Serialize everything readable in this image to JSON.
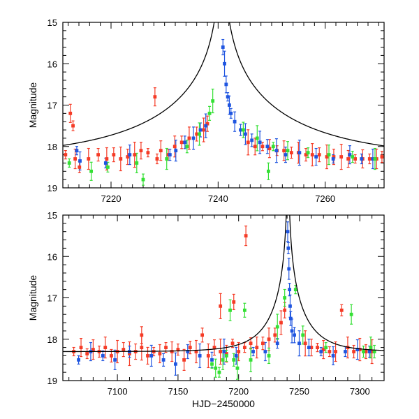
{
  "colors": {
    "red_series": "#f53b26",
    "blue_series": "#1f55e0",
    "green_series": "#35e035",
    "model": "#000000",
    "axes": "#000000"
  },
  "chart_data": [
    {
      "type": "scatter",
      "panel": "top",
      "title": "",
      "xlabel": "",
      "ylabel": "Magnitude",
      "xlim": [
        7211,
        7271
      ],
      "ylim": [
        19,
        15
      ],
      "y_inverted": true,
      "x_tick_labels": [
        "7220",
        "7240",
        "7260"
      ],
      "x_tick_values": [
        7220,
        7240,
        7260
      ],
      "y_tick_labels": [
        "15",
        "16",
        "17",
        "18",
        "19"
      ],
      "y_tick_values": [
        15,
        16,
        17,
        18,
        19
      ],
      "model_curve": {
        "name": "point-lens model",
        "t0": 7240.7,
        "tE": 30,
        "u0": 0.003,
        "baseline_mag": 18.3,
        "style": "black line"
      },
      "series": [
        {
          "name": "red observatory",
          "color": "#f53b26",
          "x": [
            7211.5,
            7212.4,
            7212.9,
            7213.3,
            7214.1,
            7215.8,
            7217.6,
            7219.2,
            7220.5,
            7221.8,
            7223.1,
            7224.4,
            7225.6,
            7226.9,
            7228.2,
            7228.6,
            7229.3,
            7230.7,
            7231.9,
            7233.2,
            7234.6,
            7236.0,
            7237.3,
            7238.0,
            7245.6,
            7246.9,
            7248.3,
            7249.6,
            7251.0,
            7252.3,
            7253.7,
            7255.0,
            7256.4,
            7257.6,
            7258.9,
            7260.3,
            7261.6,
            7263.0,
            7264.3,
            7265.6,
            7267.0,
            7268.3,
            7269.6,
            7270.6
          ],
          "y": [
            18.2,
            17.2,
            17.5,
            18.3,
            18.5,
            18.3,
            18.2,
            18.3,
            18.2,
            18.3,
            18.25,
            18.2,
            18.1,
            18.15,
            16.8,
            18.3,
            18.1,
            18.2,
            18.0,
            17.9,
            17.8,
            17.7,
            17.6,
            17.45,
            17.9,
            18.0,
            18.0,
            18.05,
            18.1,
            18.1,
            18.15,
            18.15,
            18.2,
            18.2,
            18.2,
            18.25,
            18.25,
            18.25,
            18.3,
            18.3,
            18.3,
            18.3,
            18.3,
            18.25
          ]
        },
        {
          "name": "blue observatory",
          "color": "#1f55e0",
          "x": [
            7213.6,
            7214.2,
            7219.0,
            7223.5,
            7231.0,
            7232.1,
            7233.8,
            7235.4,
            7236.7,
            7237.7,
            7240.9,
            7241.2,
            7241.5,
            7241.8,
            7242.1,
            7242.4,
            7243.1,
            7244.2,
            7245.1,
            7246.3,
            7247.8,
            7249.2,
            7250.9,
            7252.6,
            7255.2,
            7258.3,
            7261.5,
            7264.6,
            7266.8,
            7268.9
          ],
          "y": [
            18.1,
            18.35,
            18.4,
            18.2,
            18.2,
            18.1,
            17.9,
            17.8,
            17.6,
            17.5,
            15.6,
            16.0,
            16.5,
            16.8,
            17.0,
            17.2,
            17.4,
            17.6,
            17.7,
            17.85,
            17.9,
            18.0,
            18.1,
            18.2,
            18.15,
            18.25,
            18.3,
            18.2,
            18.3,
            18.3
          ]
        },
        {
          "name": "green observatory",
          "color": "#35e035",
          "x": [
            7212.2,
            7216.3,
            7219.4,
            7224.8,
            7226.0,
            7230.4,
            7234.2,
            7236.5,
            7238.4,
            7239.0,
            7244.7,
            7247.3,
            7249.4,
            7250.3,
            7253.0,
            7256.8,
            7260.7,
            7265.1,
            7269.3
          ],
          "y": [
            18.4,
            18.6,
            18.5,
            18.4,
            18.8,
            18.3,
            18.0,
            17.7,
            17.2,
            16.9,
            17.6,
            17.8,
            18.6,
            18.0,
            18.1,
            18.15,
            18.2,
            18.25,
            18.3
          ]
        }
      ]
    },
    {
      "type": "scatter",
      "panel": "bottom",
      "title": "",
      "xlabel": "HJD−2450000",
      "ylabel": "Magnitude",
      "xlim": [
        7055,
        7320
      ],
      "ylim": [
        19,
        15
      ],
      "y_inverted": true,
      "x_tick_labels": [
        "7100",
        "7150",
        "7200",
        "7250",
        "7300"
      ],
      "x_tick_values": [
        7100,
        7150,
        7200,
        7250,
        7300
      ],
      "y_tick_labels": [
        "15",
        "16",
        "17",
        "18",
        "19"
      ],
      "y_tick_values": [
        15,
        16,
        17,
        18,
        19
      ],
      "model_curve": {
        "name": "point-lens model",
        "t0": 7240.7,
        "tE": 30,
        "u0": 0.003,
        "baseline_mag": 18.3,
        "style": "black line"
      },
      "series": [
        {
          "name": "red observatory",
          "color": "#f53b26",
          "x": [
            7064,
            7070,
            7075,
            7080,
            7085,
            7090,
            7095,
            7100,
            7105,
            7110,
            7115,
            7120,
            7125,
            7130,
            7135,
            7140,
            7145,
            7150,
            7155,
            7160,
            7165,
            7170,
            7175,
            7180,
            7185,
            7190,
            7195,
            7200,
            7205,
            7206,
            7210,
            7215,
            7220,
            7225,
            7230,
            7235,
            7238,
            7255,
            7260,
            7265,
            7270,
            7275,
            7280,
            7285,
            7290,
            7295,
            7300,
            7305,
            7310,
            7196,
            7185,
            7120
          ],
          "y": [
            18.3,
            18.2,
            18.35,
            18.25,
            18.3,
            18.2,
            18.4,
            18.3,
            18.25,
            18.35,
            18.3,
            18.2,
            18.4,
            18.3,
            18.35,
            18.2,
            18.3,
            18.25,
            18.5,
            18.2,
            18.3,
            17.9,
            18.4,
            18.2,
            18.3,
            18.35,
            18.1,
            18.3,
            18.2,
            15.5,
            18.1,
            18.2,
            18.1,
            18.0,
            17.9,
            17.6,
            17.3,
            18.1,
            18.2,
            18.2,
            18.25,
            18.3,
            18.3,
            17.3,
            18.2,
            18.3,
            18.25,
            18.3,
            18.3,
            17.1,
            17.2,
            17.9
          ]
        },
        {
          "name": "blue observatory",
          "color": "#1f55e0",
          "x": [
            7068,
            7078,
            7088,
            7098,
            7110,
            7128,
            7138,
            7148,
            7158,
            7168,
            7178,
            7188,
            7198,
            7212,
            7222,
            7232,
            7240.5,
            7241.0,
            7241.5,
            7242.0,
            7242.5,
            7243.0,
            7244.0,
            7246.0,
            7250.0,
            7258,
            7268,
            7278,
            7288,
            7298,
            7308
          ],
          "y": [
            18.5,
            18.3,
            18.4,
            18.5,
            18.3,
            18.4,
            18.5,
            18.6,
            18.3,
            18.4,
            18.5,
            18.3,
            18.4,
            18.3,
            18.3,
            18.1,
            15.4,
            15.8,
            16.3,
            16.8,
            17.2,
            17.5,
            17.8,
            17.9,
            18.1,
            18.2,
            18.3,
            18.4,
            18.3,
            18.25,
            18.3
          ]
        },
        {
          "name": "green observatory",
          "color": "#35e035",
          "x": [
            7178,
            7181,
            7184,
            7187,
            7190,
            7193,
            7196,
            7199,
            7205,
            7210,
            7225,
            7232,
            7238,
            7247,
            7253,
            7272,
            7293,
            7303,
            7309,
            7312
          ],
          "y": [
            18.6,
            18.7,
            18.8,
            18.5,
            18.4,
            17.3,
            18.5,
            18.7,
            17.3,
            18.5,
            18.4,
            17.7,
            17.0,
            16.8,
            17.9,
            18.2,
            17.4,
            18.3,
            18.2,
            18.3
          ]
        }
      ]
    }
  ]
}
